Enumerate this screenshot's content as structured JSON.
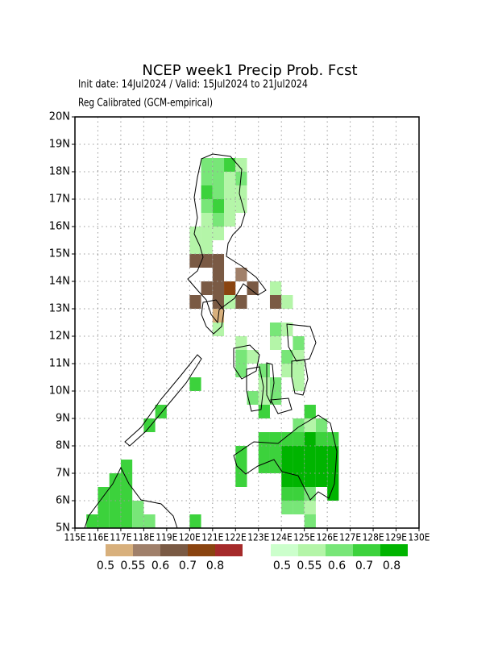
{
  "chart_data": {
    "type": "grid-map",
    "title": "NCEP week1 Precip Prob. Fcst",
    "subtitle": "Init date: 14Jul2024 / Valid: 15Jul2024 to 21Jul2024",
    "subtitle2": "Reg Calibrated (GCM-empirical)",
    "xlim": [
      115,
      130
    ],
    "ylim": [
      5,
      20
    ],
    "grid": true,
    "cell_size": 0.5,
    "xticks": [
      {
        "value": 115,
        "label": "115E"
      },
      {
        "value": 116,
        "label": "116E"
      },
      {
        "value": 117,
        "label": "117E"
      },
      {
        "value": 118,
        "label": "118E"
      },
      {
        "value": 119,
        "label": "119E"
      },
      {
        "value": 120,
        "label": "120E"
      },
      {
        "value": 121,
        "label": "121E"
      },
      {
        "value": 122,
        "label": "122E"
      },
      {
        "value": 123,
        "label": "123E"
      },
      {
        "value": 124,
        "label": "124E"
      },
      {
        "value": 125,
        "label": "125E"
      },
      {
        "value": 126,
        "label": "126E"
      },
      {
        "value": 127,
        "label": "127E"
      },
      {
        "value": 128,
        "label": "128E"
      },
      {
        "value": 129,
        "label": "129E"
      },
      {
        "value": 130,
        "label": "130E"
      }
    ],
    "yticks": [
      {
        "value": 5,
        "label": "5N"
      },
      {
        "value": 6,
        "label": "6N"
      },
      {
        "value": 7,
        "label": "7N"
      },
      {
        "value": 8,
        "label": "8N"
      },
      {
        "value": 9,
        "label": "9N"
      },
      {
        "value": 10,
        "label": "10N"
      },
      {
        "value": 11,
        "label": "11N"
      },
      {
        "value": 12,
        "label": "12N"
      },
      {
        "value": 13,
        "label": "13N"
      },
      {
        "value": 14,
        "label": "14N"
      },
      {
        "value": 15,
        "label": "15N"
      },
      {
        "value": 16,
        "label": "16N"
      },
      {
        "value": 17,
        "label": "17N"
      },
      {
        "value": 18,
        "label": "18N"
      },
      {
        "value": 19,
        "label": "19N"
      },
      {
        "value": 20,
        "label": "20N"
      }
    ],
    "series": [
      {
        "levels": [
          0.5,
          0.55,
          0.6,
          0.7,
          0.8
        ],
        "colors": [
          "#d8b07c",
          "#a0806a",
          "#7a5a44",
          "#8a4410",
          "#a52a2a"
        ],
        "lon": [
          120.25,
          120.75,
          121.25,
          121.25,
          122.25,
          120.75,
          121.25,
          121.75,
          122.75,
          122.25,
          120.25,
          121.25,
          122.25,
          123.75,
          121.25
        ],
        "lat": [
          14.75,
          14.75,
          14.75,
          14.25,
          14.25,
          13.75,
          13.75,
          13.75,
          13.75,
          13.25,
          13.25,
          13.25,
          13.25,
          13.25,
          12.75
        ],
        "values": [
          0.65,
          0.65,
          0.65,
          0.65,
          0.57,
          0.65,
          0.65,
          0.75,
          0.65,
          0.65,
          0.65,
          0.65,
          0.65,
          0.65,
          0.52
        ]
      },
      {
        "levels": [
          0.5,
          0.55,
          0.6,
          0.7,
          0.8
        ],
        "colors": [
          "#ccffcc",
          "#b4f5a8",
          "#78e678",
          "#3cd23c",
          "#00b400"
        ],
        "lon": [
          120.75,
          121.25,
          121.75,
          122.25,
          120.75,
          121.25,
          121.75,
          122.25,
          120.75,
          121.25,
          121.75,
          122.25,
          120.75,
          121.25,
          121.75,
          122.25,
          120.75,
          121.25,
          121.75,
          120.25,
          120.75,
          121.25,
          120.25,
          120.75,
          123.75,
          121.75,
          124.25,
          121.25,
          123.75,
          124.25,
          122.25,
          123.75,
          124.75,
          122.25,
          122.75,
          124.25,
          124.75,
          122.25,
          123.25,
          124.25,
          124.75,
          120.25,
          123.25,
          123.75,
          124.75,
          122.75,
          123.25,
          123.75,
          118.75,
          123.25,
          125.25,
          118.25,
          124.75,
          125.25,
          125.75,
          123.25,
          123.75,
          124.25,
          124.75,
          125.25,
          125.75,
          126.25,
          122.25,
          123.25,
          123.75,
          124.25,
          124.75,
          125.25,
          125.75,
          126.25,
          122.25,
          123.25,
          123.75,
          124.25,
          124.75,
          125.25,
          125.75,
          126.25,
          122.25,
          124.25,
          124.75,
          125.25,
          125.75,
          126.25,
          124.25,
          124.75,
          125.25,
          126.25,
          124.25,
          124.75,
          125.25,
          125.25,
          117.25,
          116.75,
          117.25,
          116.25,
          116.75,
          117.25,
          116.25,
          116.75,
          117.25,
          117.75,
          115.75,
          116.25,
          116.75,
          117.25,
          117.75,
          118.25,
          120.25
        ],
        "lat": [
          18.25,
          18.25,
          18.25,
          18.25,
          17.75,
          17.75,
          17.75,
          17.75,
          17.25,
          17.25,
          17.25,
          17.25,
          16.75,
          16.75,
          16.75,
          16.75,
          16.25,
          16.25,
          16.25,
          15.75,
          15.75,
          15.75,
          15.25,
          15.25,
          13.75,
          13.25,
          13.25,
          12.25,
          12.25,
          12.25,
          11.75,
          11.75,
          11.75,
          11.25,
          11.25,
          11.25,
          11.25,
          10.75,
          10.75,
          10.75,
          10.75,
          10.25,
          10.25,
          10.25,
          10.25,
          9.75,
          9.75,
          9.75,
          9.25,
          9.25,
          9.25,
          8.75,
          8.75,
          8.75,
          8.75,
          8.25,
          8.25,
          8.25,
          8.25,
          8.25,
          8.25,
          8.25,
          7.75,
          7.75,
          7.75,
          7.75,
          7.75,
          7.75,
          7.75,
          7.75,
          7.25,
          7.25,
          7.25,
          7.25,
          7.25,
          7.25,
          7.25,
          7.25,
          6.75,
          6.75,
          6.75,
          6.75,
          6.75,
          6.75,
          6.25,
          6.25,
          6.25,
          6.25,
          5.75,
          5.75,
          5.75,
          5.25,
          7.25,
          6.75,
          6.75,
          6.25,
          6.25,
          6.25,
          5.75,
          5.75,
          5.75,
          5.75,
          5.25,
          5.25,
          5.25,
          5.25,
          5.25,
          5.25,
          5.25
        ],
        "values": [
          0.65,
          0.65,
          0.75,
          0.55,
          0.65,
          0.65,
          0.55,
          0.65,
          0.75,
          0.65,
          0.55,
          0.55,
          0.65,
          0.75,
          0.55,
          0.55,
          0.55,
          0.65,
          0.55,
          0.55,
          0.55,
          0.55,
          0.55,
          0.55,
          0.55,
          0.55,
          0.55,
          0.55,
          0.65,
          0.55,
          0.55,
          0.55,
          0.65,
          0.65,
          0.55,
          0.65,
          0.55,
          0.65,
          0.65,
          0.55,
          0.55,
          0.75,
          0.55,
          0.65,
          0.55,
          0.65,
          0.55,
          0.65,
          0.75,
          0.75,
          0.75,
          0.75,
          0.65,
          0.55,
          0.65,
          0.75,
          0.75,
          0.75,
          0.75,
          0.85,
          0.75,
          0.75,
          0.75,
          0.75,
          0.75,
          0.85,
          0.85,
          0.85,
          0.85,
          0.85,
          0.75,
          0.75,
          0.75,
          0.85,
          0.85,
          0.85,
          0.85,
          0.85,
          0.75,
          0.85,
          0.85,
          0.85,
          0.85,
          0.85,
          0.75,
          0.75,
          0.65,
          0.85,
          0.65,
          0.65,
          0.55,
          0.65,
          0.75,
          0.75,
          0.75,
          0.75,
          0.75,
          0.75,
          0.75,
          0.75,
          0.75,
          0.65,
          0.75,
          0.75,
          0.75,
          0.75,
          0.65,
          0.65,
          0.75
        ]
      }
    ]
  }
}
